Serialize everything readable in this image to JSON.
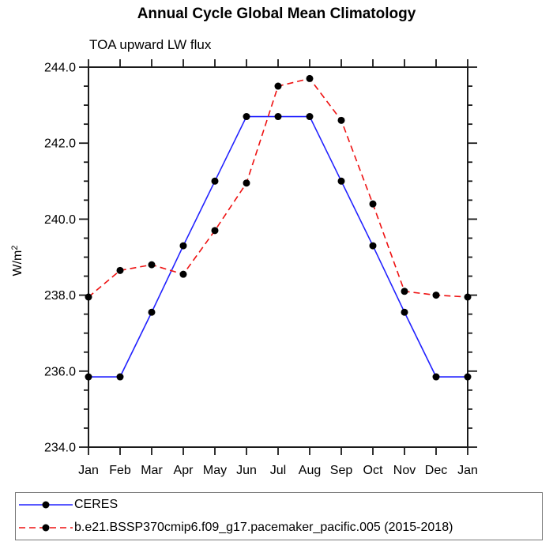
{
  "title": "Annual Cycle Global Mean Climatology",
  "subtitle": "TOA upward LW flux",
  "y_axis": {
    "label_base": "W/m",
    "label_sup": "2",
    "tick_labels": [
      "234.0",
      "236.0",
      "238.0",
      "240.0",
      "242.0",
      "244.0"
    ]
  },
  "colors": {
    "ceres_line": "#2222ff",
    "model_line": "#ee1111",
    "marker": "#000000",
    "axis": "#1a1a1a"
  },
  "chart_data": {
    "type": "line",
    "title": "Annual Cycle Global Mean Climatology",
    "subtitle": "TOA upward LW flux",
    "xlabel": "",
    "ylabel": "W/m2",
    "ylim": [
      234.0,
      244.0
    ],
    "ytick_major": 2.0,
    "ytick_minor": 0.5,
    "grid": false,
    "legend_position": "bottom",
    "categories": [
      "Jan",
      "Feb",
      "Mar",
      "Apr",
      "May",
      "Jun",
      "Jul",
      "Aug",
      "Sep",
      "Oct",
      "Nov",
      "Dec",
      "Jan"
    ],
    "series": [
      {
        "name": "CERES",
        "line_color": "#2222ff",
        "line_style": "solid",
        "marker": "circle",
        "marker_color": "#000000",
        "values": [
          235.85,
          235.85,
          237.55,
          239.3,
          241.0,
          242.7,
          242.7,
          242.7,
          241.0,
          239.3,
          237.55,
          235.85,
          235.85
        ]
      },
      {
        "name": "b.e21.BSSP370cmip6.f09_g17.pacemaker_pacific.005 (2015-2018)",
        "line_color": "#ee1111",
        "line_style": "dashed",
        "marker": "circle",
        "marker_color": "#000000",
        "values": [
          237.95,
          238.65,
          238.8,
          238.55,
          239.7,
          240.95,
          243.5,
          243.7,
          242.6,
          240.4,
          238.1,
          238.0,
          237.95
        ]
      }
    ]
  }
}
